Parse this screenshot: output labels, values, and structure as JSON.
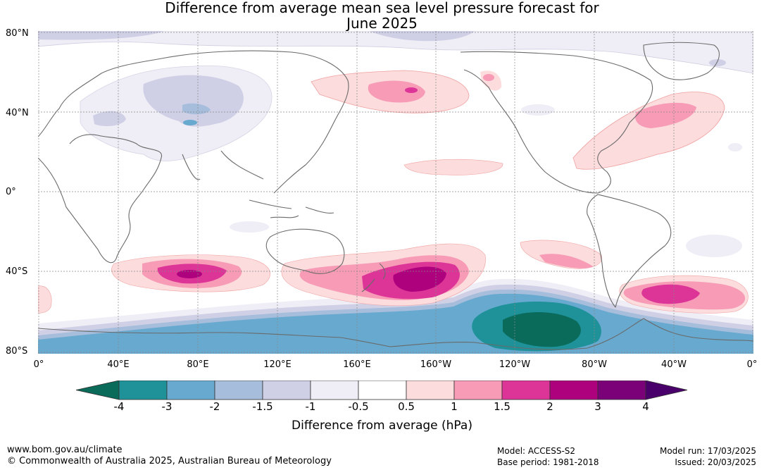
{
  "title": {
    "line1": "Difference from average mean sea level pressure forecast for",
    "line2": "June 2025"
  },
  "lat_labels": [
    "80°N",
    "40°N",
    "0°",
    "40°S",
    "80°S"
  ],
  "lon_labels": [
    "0°",
    "40°E",
    "80°E",
    "120°E",
    "160°E",
    "160°W",
    "120°W",
    "80°W",
    "40°W",
    "0°"
  ],
  "colorbar": {
    "ticks": [
      "-4",
      "-3",
      "-2",
      "-1.5",
      "-1",
      "-0.5",
      "0.5",
      "1",
      "1.5",
      "2",
      "3",
      "4"
    ],
    "colors": [
      "#0a6b5a",
      "#1e9199",
      "#67a9cf",
      "#a6bddb",
      "#cfd0e6",
      "#efedf5",
      "#ffffff",
      "#fcdcdc",
      "#f79bb6",
      "#dd3497",
      "#ae017e",
      "#7a0177",
      "#49006a"
    ],
    "title": "Difference from average (hPa)"
  },
  "footer": {
    "url": "www.bom.gov.au/climate",
    "copyright": "© Commonwealth of Australia 2025, Australian Bureau of Meteorology",
    "model": "Model: ACCESS-S2",
    "base_period": "Base period: 1981-2018",
    "model_run": "Model run: 17/03/2025",
    "issued": "Issued: 20/03/2025"
  }
}
